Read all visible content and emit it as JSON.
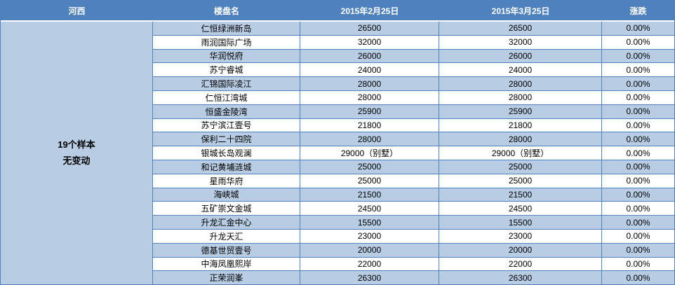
{
  "colors": {
    "header_bg": "#4f81bd",
    "header_text": "#ffffff",
    "row_odd_bg": "#b8cce4",
    "row_even_bg": "#ffffff",
    "grid_border": "#4f81bd"
  },
  "table": {
    "headers": {
      "region": "河西",
      "name": "楼盘名",
      "date1": "2015年2月25日",
      "date2": "2015年3月25日",
      "change": "涨跌"
    },
    "summary": {
      "line1": "19个样本",
      "line2": "无变动"
    },
    "rows": [
      {
        "name": "仁恒绿洲新岛",
        "date1": "26500",
        "date2": "26500",
        "change": "0.00%"
      },
      {
        "name": "雨润国际广场",
        "date1": "32000",
        "date2": "32000",
        "change": "0.00%"
      },
      {
        "name": "华润悦府",
        "date1": "26000",
        "date2": "26000",
        "change": "0.00%"
      },
      {
        "name": "苏宁睿城",
        "date1": "24000",
        "date2": "24000",
        "change": "0.00%"
      },
      {
        "name": "汇锦国际凌江",
        "date1": "28000",
        "date2": "28000",
        "change": "0.00%"
      },
      {
        "name": "仁恒江湾城",
        "date1": "28000",
        "date2": "28000",
        "change": "0.00%"
      },
      {
        "name": "恒盛金陵湾",
        "date1": "25900",
        "date2": "25900",
        "change": "0.00%"
      },
      {
        "name": "苏宁滨江壹号",
        "date1": "21800",
        "date2": "21800",
        "change": "0.00%"
      },
      {
        "name": "保利二十四院",
        "date1": "28000",
        "date2": "28000",
        "change": "0.00%"
      },
      {
        "name": "银城长岛观澜",
        "date1": "29000（别墅）",
        "date2": "29000（别墅）",
        "change": "0.00%"
      },
      {
        "name": "和记黄埔涟城",
        "date1": "25000",
        "date2": "25000",
        "change": "0.00%"
      },
      {
        "name": "星雨华府",
        "date1": "25000",
        "date2": "25000",
        "change": "0.00%"
      },
      {
        "name": "海峡城",
        "date1": "21500",
        "date2": "21500",
        "change": "0.00%"
      },
      {
        "name": "五矿崇文金城",
        "date1": "24500",
        "date2": "24500",
        "change": "0.00%"
      },
      {
        "name": "升龙汇金中心",
        "date1": "15500",
        "date2": "15500",
        "change": "0.00%"
      },
      {
        "name": "升龙天汇",
        "date1": "23000",
        "date2": "23000",
        "change": "0.00%"
      },
      {
        "name": "德基世贸壹号",
        "date1": "20000",
        "date2": "20000",
        "change": "0.00%"
      },
      {
        "name": "中海凤凰熙岸",
        "date1": "22000",
        "date2": "22000",
        "change": "0.00%"
      },
      {
        "name": "正荣润峯",
        "date1": "26300",
        "date2": "26300",
        "change": "0.00%"
      }
    ]
  }
}
